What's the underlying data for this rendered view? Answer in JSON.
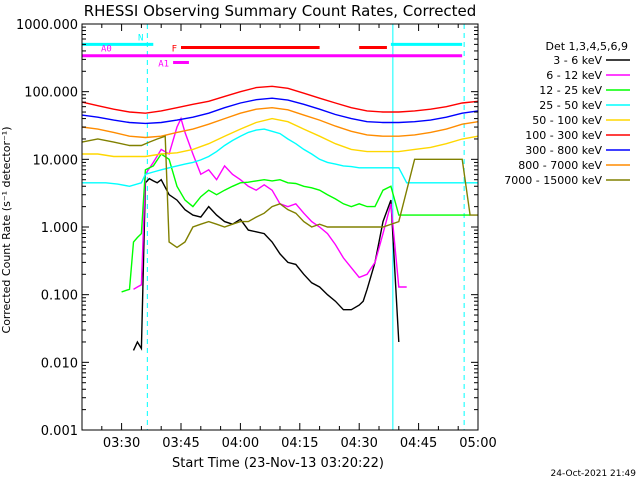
{
  "chart_data": {
    "type": "line",
    "title": "RHESSI Observing Summary Count Rates, Corrected",
    "xlabel": "Start Time (23-Nov-13 03:20:22)",
    "ylabel": "Corrected Count Rate (s⁻¹ detector⁻¹)",
    "yscale": "log",
    "ylim": [
      0.001,
      1000
    ],
    "xlim_minutes": [
      0,
      100
    ],
    "x_ticks": [
      {
        "label": "03:30",
        "min": 10
      },
      {
        "label": "03:45",
        "min": 25
      },
      {
        "label": "04:00",
        "min": 40
      },
      {
        "label": "04:15",
        "min": 55
      },
      {
        "label": "04:30",
        "min": 70
      },
      {
        "label": "04:45",
        "min": 85
      },
      {
        "label": "05:00",
        "min": 100
      }
    ],
    "y_ticks": [
      {
        "label": "0.001",
        "value": 0.001
      },
      {
        "label": "0.010",
        "value": 0.01
      },
      {
        "label": "0.100",
        "value": 0.1
      },
      {
        "label": "1.000",
        "value": 1
      },
      {
        "label": "10.000",
        "value": 10
      },
      {
        "label": "100.000",
        "value": 100
      },
      {
        "label": "1000.000",
        "value": 1000
      }
    ],
    "legend_title": "Det 1,3,4,5,6,9",
    "legend_position": "right",
    "series": [
      {
        "name": "3 - 6 keV",
        "color": "#000000",
        "x": [
          13,
          14,
          15,
          16,
          17,
          18,
          19,
          20,
          22,
          24,
          26,
          28,
          30,
          32,
          34,
          36,
          38,
          40,
          42,
          44,
          46,
          48,
          50,
          52,
          54,
          56,
          58,
          60,
          62,
          64,
          66,
          68,
          70,
          71,
          72,
          74,
          76,
          78,
          80
        ],
        "y": [
          0.015,
          0.02,
          0.016,
          4.5,
          5.2,
          4.8,
          4.5,
          5.0,
          3.0,
          2.5,
          1.8,
          1.5,
          1.4,
          2.0,
          1.5,
          1.2,
          1.1,
          1.3,
          0.9,
          0.85,
          0.8,
          0.6,
          0.4,
          0.3,
          0.28,
          0.2,
          0.15,
          0.13,
          0.1,
          0.08,
          0.06,
          0.06,
          0.07,
          0.08,
          0.12,
          0.3,
          1.2,
          2.5,
          0.02
        ]
      },
      {
        "name": "6 - 12 keV",
        "color": "#ff00ff",
        "x": [
          13,
          14,
          15,
          16,
          18,
          20,
          22,
          24,
          25,
          26,
          28,
          30,
          32,
          34,
          36,
          38,
          40,
          42,
          44,
          46,
          48,
          50,
          52,
          54,
          56,
          58,
          60,
          62,
          64,
          66,
          68,
          70,
          72,
          74,
          76,
          78,
          80,
          82
        ],
        "y": [
          0.12,
          0.13,
          0.14,
          6,
          9,
          14,
          12,
          30,
          40,
          25,
          12,
          6,
          7,
          5,
          8,
          6,
          5,
          4,
          3.5,
          4.2,
          3.5,
          2.2,
          2,
          2.2,
          1.6,
          1.2,
          1.0,
          0.8,
          0.55,
          0.35,
          0.25,
          0.18,
          0.2,
          0.3,
          0.8,
          2.2,
          0.13,
          0.13
        ]
      },
      {
        "name": "12 - 25 keV",
        "color": "#00ff00",
        "x": [
          10,
          12,
          13,
          14,
          15,
          16,
          18,
          20,
          22,
          24,
          26,
          28,
          30,
          32,
          34,
          36,
          38,
          40,
          42,
          44,
          46,
          48,
          50,
          52,
          54,
          56,
          58,
          60,
          62,
          64,
          66,
          68,
          70,
          72,
          74,
          76,
          78,
          80,
          82,
          85,
          90,
          95,
          98
        ],
        "y": [
          0.11,
          0.12,
          0.6,
          0.7,
          0.8,
          7,
          8,
          12,
          10,
          4,
          2.5,
          2,
          2.8,
          3.5,
          3,
          3.5,
          4,
          4.5,
          4.6,
          4.8,
          5,
          4.8,
          5,
          4.5,
          4.4,
          4,
          3.8,
          3.5,
          3,
          2.6,
          2.2,
          2,
          2.2,
          2,
          2,
          3.5,
          4,
          1.5,
          1.5,
          1.5,
          1.5,
          1.5,
          1.5
        ]
      },
      {
        "name": "25 - 50 keV",
        "color": "#00ffff",
        "x": [
          0,
          3,
          6,
          9,
          12,
          15,
          16,
          18,
          20,
          22,
          24,
          26,
          28,
          30,
          32,
          34,
          36,
          38,
          40,
          42,
          44,
          46,
          48,
          50,
          52,
          54,
          56,
          58,
          60,
          62,
          64,
          66,
          68,
          70,
          72,
          74,
          76,
          78,
          80,
          82,
          85,
          90,
          95,
          100
        ],
        "y": [
          4.5,
          4.5,
          4.5,
          4.3,
          4.0,
          4.5,
          6,
          6.5,
          7,
          7.5,
          8,
          8.5,
          9,
          9.8,
          11,
          13,
          16,
          19,
          22,
          25,
          27,
          28,
          26,
          24,
          20,
          17,
          14,
          12,
          10,
          9,
          8.5,
          8,
          7.8,
          7.5,
          7.5,
          7.5,
          7.5,
          7.5,
          7.5,
          4.5,
          4.5,
          4.5,
          4.5,
          4.5
        ]
      },
      {
        "name": "50 - 100 keV",
        "color": "#ffd700",
        "x": [
          0,
          4,
          8,
          12,
          16,
          20,
          24,
          28,
          32,
          36,
          40,
          44,
          48,
          52,
          56,
          60,
          64,
          68,
          72,
          76,
          80,
          84,
          88,
          92,
          96,
          100
        ],
        "y": [
          12,
          12,
          11,
          11,
          11,
          12,
          12.5,
          14,
          17,
          22,
          28,
          35,
          40,
          36,
          28,
          22,
          17,
          14,
          13,
          13,
          13,
          14,
          15,
          17,
          20,
          22
        ]
      },
      {
        "name": "100 - 300 keV",
        "color": "#ff0000",
        "x": [
          0,
          4,
          8,
          12,
          16,
          20,
          24,
          28,
          32,
          36,
          40,
          44,
          48,
          52,
          56,
          60,
          64,
          68,
          72,
          76,
          80,
          84,
          88,
          92,
          96,
          100
        ],
        "y": [
          70,
          62,
          55,
          50,
          48,
          52,
          58,
          65,
          72,
          85,
          100,
          115,
          120,
          112,
          95,
          80,
          68,
          58,
          52,
          50,
          50,
          52,
          55,
          60,
          68,
          72
        ]
      },
      {
        "name": "300 - 800 keV",
        "color": "#0000ff",
        "x": [
          0,
          4,
          8,
          12,
          16,
          20,
          24,
          28,
          32,
          36,
          40,
          44,
          48,
          52,
          56,
          60,
          64,
          68,
          72,
          76,
          80,
          84,
          88,
          92,
          96,
          100
        ],
        "y": [
          45,
          42,
          38,
          35,
          34,
          35,
          38,
          42,
          48,
          58,
          68,
          76,
          80,
          75,
          65,
          55,
          46,
          40,
          36,
          35,
          35,
          36,
          38,
          42,
          48,
          52
        ]
      },
      {
        "name": "800 - 7000 keV",
        "color": "#ff8c00",
        "x": [
          0,
          4,
          8,
          12,
          16,
          20,
          24,
          28,
          32,
          36,
          40,
          44,
          48,
          52,
          56,
          60,
          64,
          68,
          72,
          76,
          80,
          84,
          88,
          92,
          96,
          100
        ],
        "y": [
          30,
          28,
          25,
          22,
          21,
          22,
          25,
          28,
          33,
          40,
          48,
          55,
          58,
          54,
          45,
          38,
          31,
          26,
          23,
          22,
          22,
          23,
          25,
          28,
          33,
          36
        ]
      },
      {
        "name": "7000 - 15000 keV",
        "color": "#808000",
        "x": [
          0,
          4,
          8,
          12,
          13,
          15,
          17,
          19,
          21,
          22,
          24,
          26,
          28,
          30,
          32,
          34,
          36,
          38,
          40,
          42,
          44,
          46,
          48,
          50,
          52,
          54,
          56,
          58,
          60,
          62,
          64,
          66,
          68,
          70,
          72,
          76,
          80,
          84,
          88,
          92,
          96,
          98,
          100
        ],
        "y": [
          18,
          20,
          18,
          16,
          16,
          16,
          18,
          20,
          22,
          0.6,
          0.5,
          0.6,
          1.0,
          1.1,
          1.2,
          1.1,
          1.0,
          1.1,
          1.2,
          1.2,
          1.4,
          1.6,
          2.0,
          2.2,
          1.8,
          1.6,
          1.2,
          1.0,
          1.1,
          1.0,
          1.0,
          1.0,
          1.0,
          1.0,
          1.0,
          1.0,
          1.2,
          10,
          10,
          10,
          10,
          1.5,
          1.5
        ]
      }
    ],
    "annotations": {
      "N": {
        "label": "N",
        "color": "#00ffff",
        "value": 500,
        "spans": [
          [
            0,
            18
          ],
          [
            78,
            96
          ]
        ]
      },
      "F": {
        "label": "F",
        "color": "#ff0000",
        "value": 450,
        "spans": [
          [
            25,
            60
          ],
          [
            70,
            77
          ]
        ]
      },
      "A0": {
        "label": "A0",
        "color": "#ff00ff",
        "value": 340,
        "spans": [
          [
            0,
            96
          ]
        ]
      },
      "A1": {
        "label": "A1",
        "color": "#ff00ff",
        "value": 270,
        "spans": [
          [
            23,
            27
          ]
        ]
      },
      "vlines": [
        {
          "min": 16.5,
          "color": "#00ffff",
          "style": "dashed"
        },
        {
          "min": 78.5,
          "color": "#00ffff",
          "style": "solid"
        },
        {
          "min": 96.5,
          "color": "#00ffff",
          "style": "dashed"
        }
      ]
    },
    "footer_date": "24-Oct-2021 21:49"
  }
}
